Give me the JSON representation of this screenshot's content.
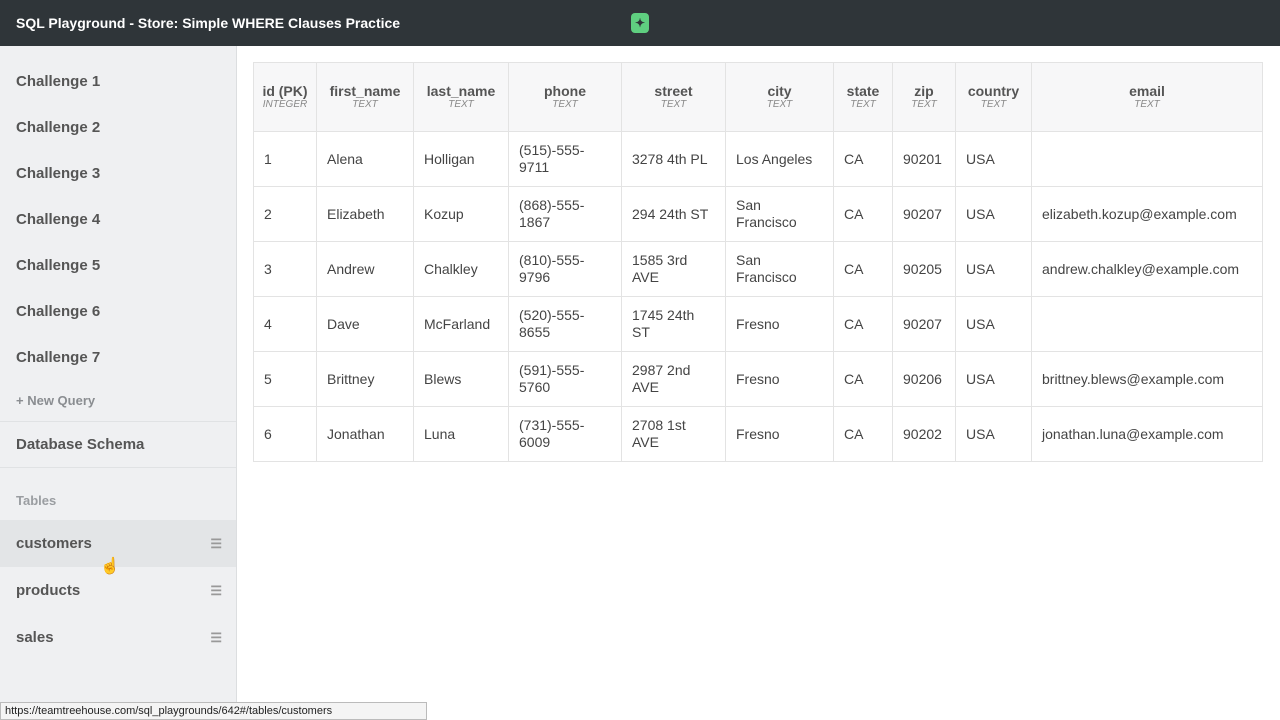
{
  "app": {
    "title": "SQL Playground - Store: Simple WHERE Clauses Practice",
    "logo": "treehouse-logo"
  },
  "sidebar": {
    "challenges": [
      "Challenge 1",
      "Challenge 2",
      "Challenge 3",
      "Challenge 4",
      "Challenge 5",
      "Challenge 6",
      "Challenge 7"
    ],
    "new_query": "+ New Query",
    "schema": "Database Schema",
    "tables_label": "Tables",
    "tables": [
      "customers",
      "products",
      "sales"
    ]
  },
  "table": {
    "columns": [
      {
        "name": "id (PK)",
        "type": "INTEGER"
      },
      {
        "name": "first_name",
        "type": "TEXT"
      },
      {
        "name": "last_name",
        "type": "TEXT"
      },
      {
        "name": "phone",
        "type": "TEXT"
      },
      {
        "name": "street",
        "type": "TEXT"
      },
      {
        "name": "city",
        "type": "TEXT"
      },
      {
        "name": "state",
        "type": "TEXT"
      },
      {
        "name": "zip",
        "type": "TEXT"
      },
      {
        "name": "country",
        "type": "TEXT"
      },
      {
        "name": "email",
        "type": "TEXT"
      }
    ],
    "rows": [
      [
        "1",
        "Alena",
        "Holligan",
        "(515)-555-9711",
        "3278 4th PL",
        "Los Angeles",
        "CA",
        "90201",
        "USA",
        ""
      ],
      [
        "2",
        "Elizabeth",
        "Kozup",
        "(868)-555-1867",
        "294 24th ST",
        "San Francisco",
        "CA",
        "90207",
        "USA",
        "elizabeth.kozup@example.com"
      ],
      [
        "3",
        "Andrew",
        "Chalkley",
        "(810)-555-9796",
        "1585 3rd AVE",
        "San Francisco",
        "CA",
        "90205",
        "USA",
        "andrew.chalkley@example.com"
      ],
      [
        "4",
        "Dave",
        "McFarland",
        "(520)-555-8655",
        "1745 24th ST",
        "Fresno",
        "CA",
        "90207",
        "USA",
        ""
      ],
      [
        "5",
        "Brittney",
        "Blews",
        "(591)-555-5760",
        "2987 2nd AVE",
        "Fresno",
        "CA",
        "90206",
        "USA",
        "brittney.blews@example.com"
      ],
      [
        "6",
        "Jonathan",
        "Luna",
        "(731)-555-6009",
        "2708 1st AVE",
        "Fresno",
        "CA",
        "90202",
        "USA",
        "jonathan.luna@example.com"
      ]
    ]
  },
  "status_url": "https://teamtreehouse.com/sql_playgrounds/642#/tables/customers"
}
